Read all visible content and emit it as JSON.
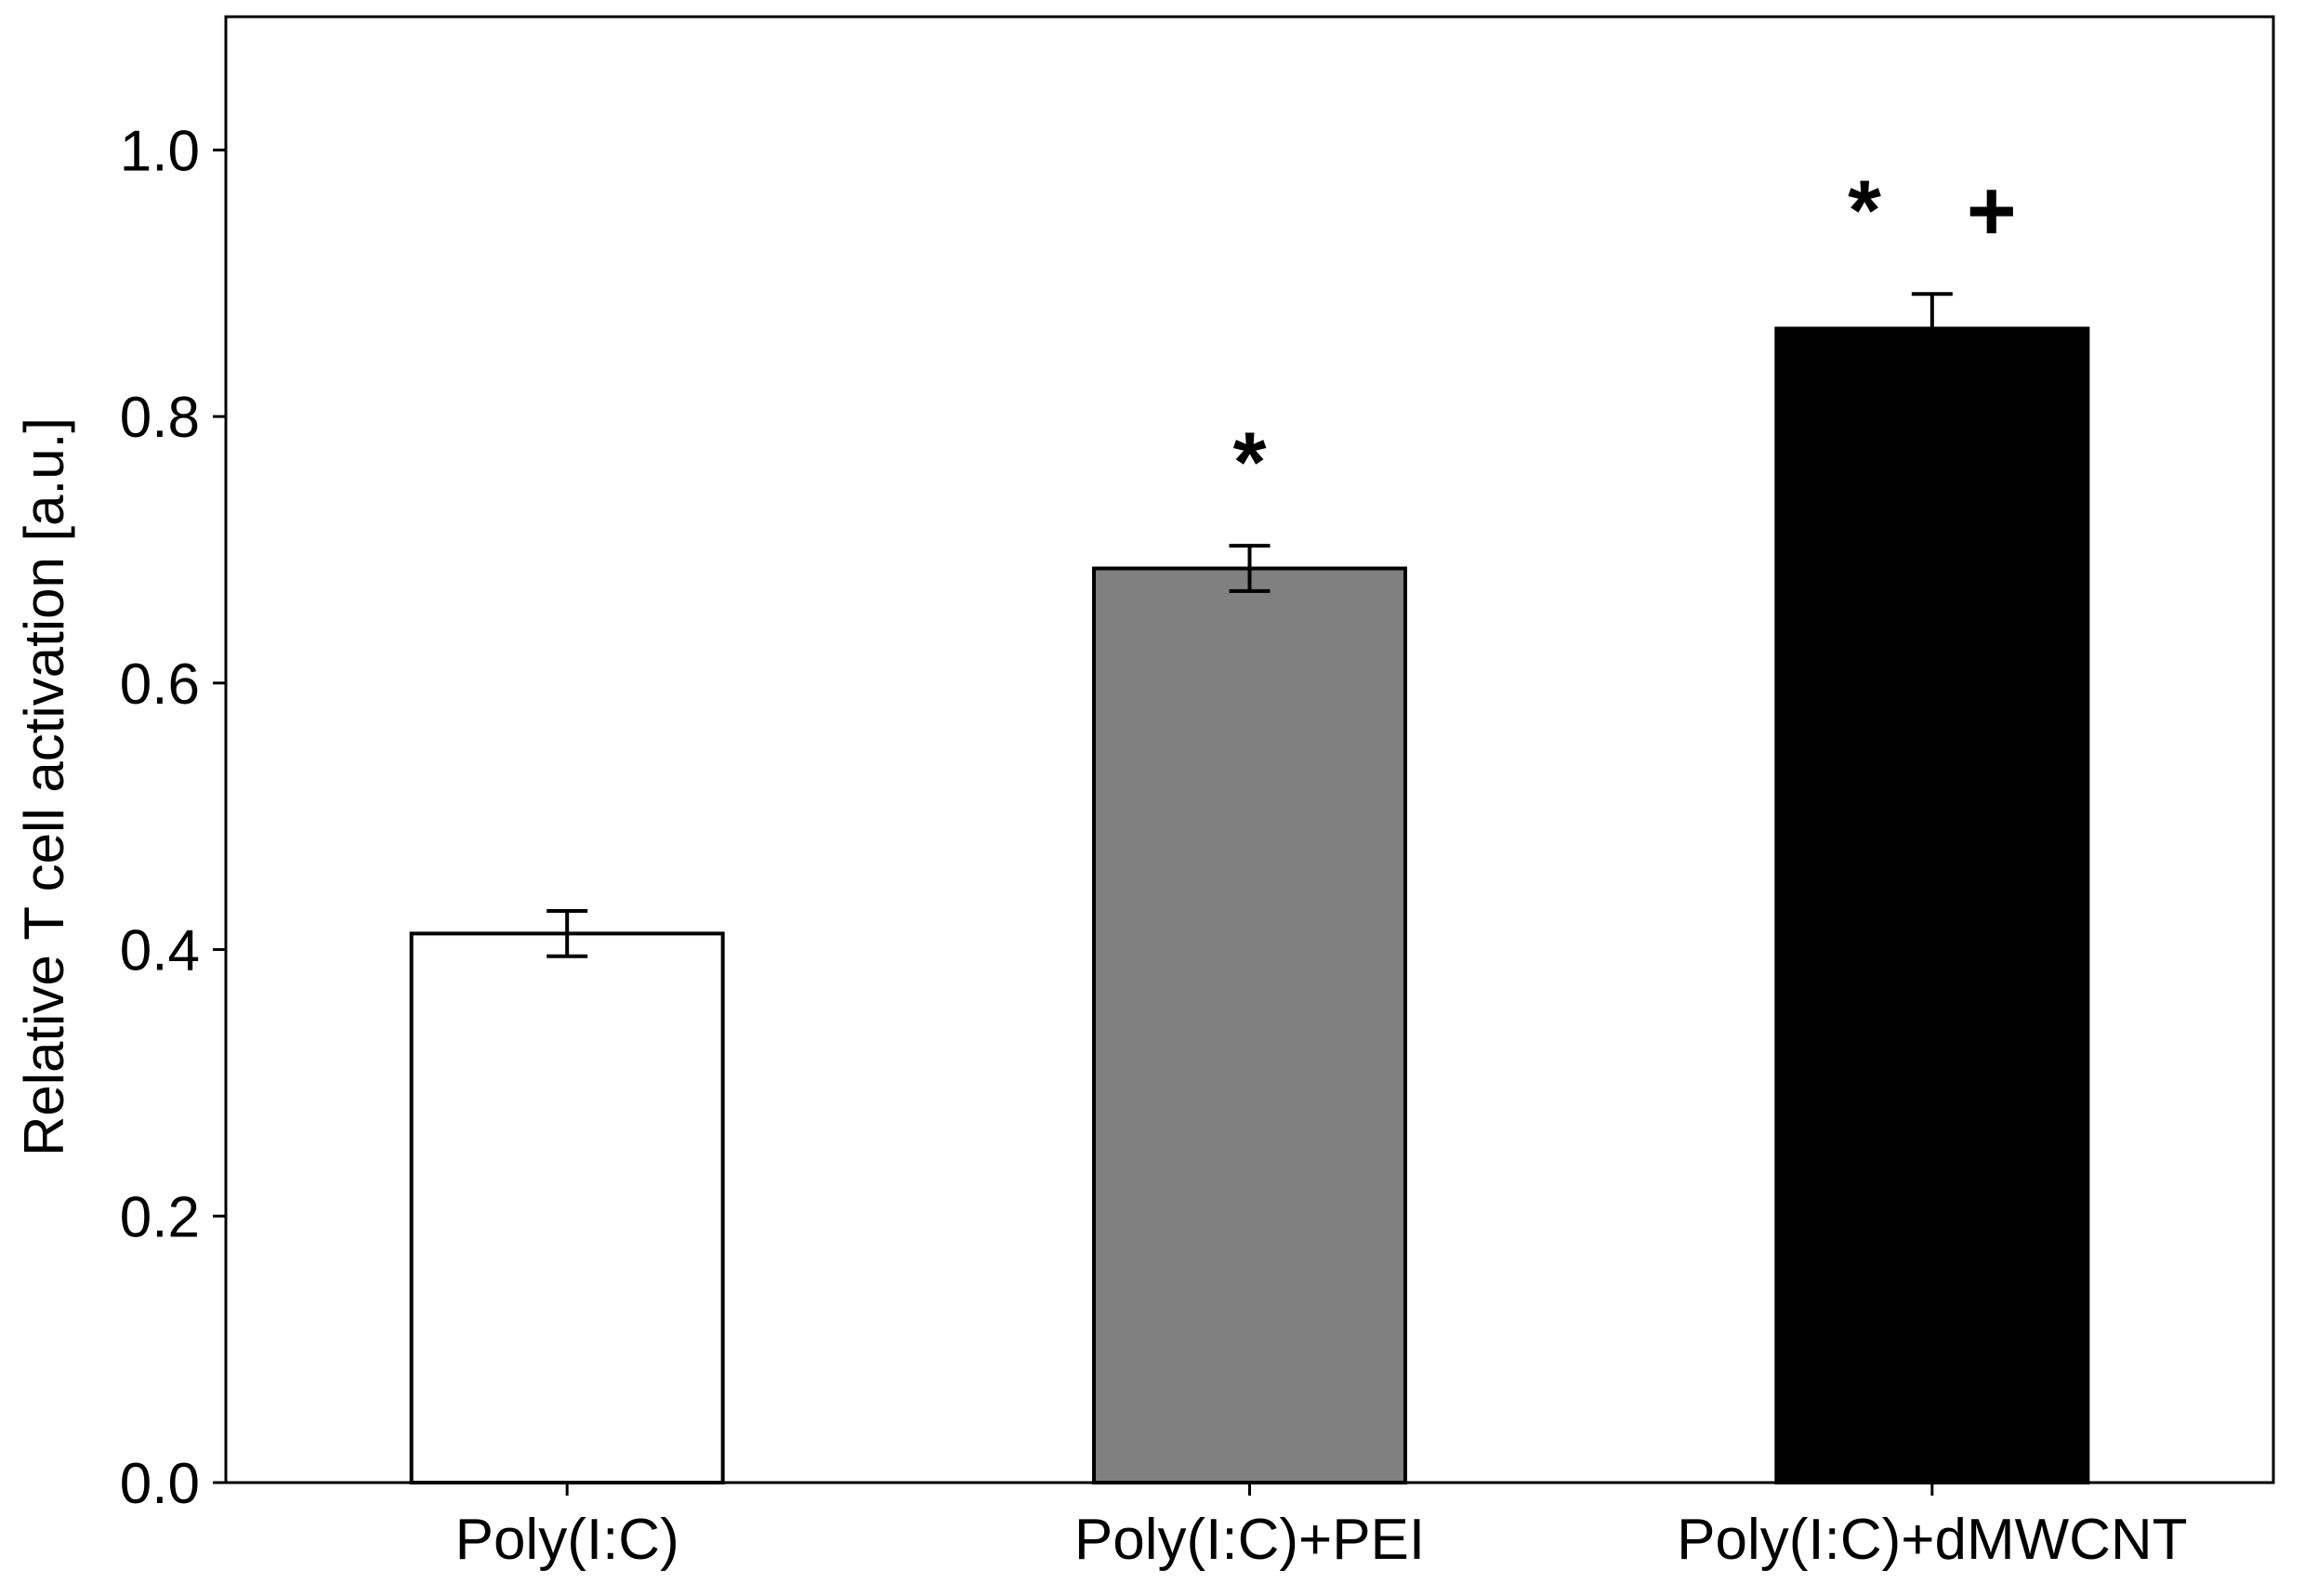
{
  "chart_data": {
    "type": "bar",
    "categories": [
      "Poly(I:C)",
      "Poly(I:C)+PEI",
      "Poly(I:C)+dMWCNT"
    ],
    "values": [
      0.412,
      0.686,
      0.866
    ],
    "errors": [
      0.017,
      0.017,
      0.026
    ],
    "bar_colors": [
      "#ffffff",
      "#808080",
      "#000000"
    ],
    "edge_color": "#000000",
    "annotations": [
      "",
      "*",
      "* +"
    ],
    "xlabel": "",
    "ylabel": "Relative T cell activation [a.u.]",
    "ylim": [
      0,
      1.1
    ],
    "yticks": [
      0.0,
      0.2,
      0.4,
      0.6,
      0.8,
      1.0
    ],
    "ytick_labels": [
      "0.0",
      "0.2",
      "0.4",
      "0.6",
      "0.8",
      "1.0"
    ],
    "grid": false,
    "legend": "none"
  }
}
